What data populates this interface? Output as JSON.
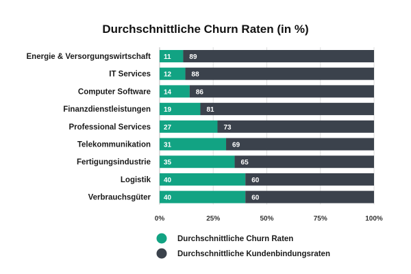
{
  "chart_data": {
    "type": "bar",
    "orientation": "horizontal",
    "stacked": true,
    "title": "Durchschnittliche Churn Raten (in %)",
    "categories": [
      "Energie & Versorgungswirtschaft",
      "IT Services",
      "Computer Software",
      "Finanzdienstleistungen",
      "Professional Services",
      "Telekommunikation",
      "Fertigungsindustrie",
      "Logistik",
      "Verbrauchsgüter"
    ],
    "series": [
      {
        "name": "Durchschnittliche Churn Raten",
        "color": "#12a383",
        "values": [
          11,
          12,
          14,
          19,
          27,
          31,
          35,
          40,
          40
        ]
      },
      {
        "name": "Durchschnittliche Kundenbindungsraten",
        "color": "#3b424c",
        "values": [
          89,
          88,
          86,
          81,
          73,
          69,
          65,
          60,
          60
        ]
      }
    ],
    "xlim": [
      0,
      100
    ],
    "xticks": [
      "0%",
      "25%",
      "50%",
      "75%",
      "100%"
    ],
    "grid": true,
    "legend_position": "bottom"
  }
}
